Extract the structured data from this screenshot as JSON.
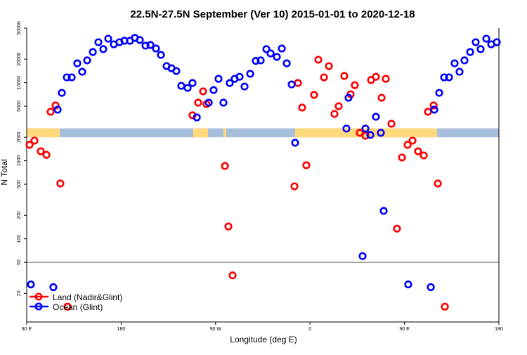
{
  "chart_data": {
    "type": "scatter",
    "title": "22.5N-27.5N September (Ver 10)   2015-01-01 to 2020-12-18",
    "xlabel": "Longitude (deg E)",
    "ylabel": "N Total",
    "xlim": [
      90,
      540
    ],
    "ylim": [
      8.6,
      50000
    ],
    "yscale": "log",
    "x_ticks": [
      {
        "value": 90,
        "label": "90 E"
      },
      {
        "value": 180,
        "label": "180"
      },
      {
        "value": 270,
        "label": "90 W"
      },
      {
        "value": 360,
        "label": "0"
      },
      {
        "value": 450,
        "label": "90 E"
      },
      {
        "value": 540,
        "label": "180"
      }
    ],
    "y_ticks": [
      {
        "value": 50000,
        "label": "50000"
      },
      {
        "value": 20000,
        "label": "20000"
      },
      {
        "value": 10000,
        "label": "10000"
      },
      {
        "value": 5000,
        "label": "5000"
      },
      {
        "value": 2000,
        "label": "2000"
      },
      {
        "value": 1000,
        "label": "1000"
      },
      {
        "value": 500,
        "label": "500"
      },
      {
        "value": 200,
        "label": "200"
      },
      {
        "value": 100,
        "label": "100"
      },
      {
        "value": 50,
        "label": "50"
      },
      {
        "value": 20,
        "label": "20"
      }
    ],
    "reference_line": 50,
    "surface_band": {
      "ylim": [
        2000,
        2600
      ],
      "land_color": "#ffd97a",
      "ocean_color": "#a7bedc",
      "land_segments": [
        [
          90,
          121.5
        ],
        [
          248.7,
          262.8
        ],
        [
          277.5,
          280.2
        ],
        [
          345.8,
          481.0
        ]
      ]
    },
    "legend": {
      "position": "bottom-left"
    },
    "series": [
      {
        "name": "Land (Nadir&Glint)",
        "color": "#ff0000",
        "points": [
          [
            92.7,
            1600
          ],
          [
            97.4,
            1810
          ],
          [
            103.4,
            1320
          ],
          [
            108.8,
            1190
          ],
          [
            112.8,
            4240
          ],
          [
            117.5,
            5110
          ],
          [
            122.1,
            511
          ],
          [
            128.8,
            13.5
          ],
          [
            248.0,
            3820
          ],
          [
            253.4,
            5550
          ],
          [
            258.1,
            7730
          ],
          [
            261.4,
            5320
          ],
          [
            278.9,
            857
          ],
          [
            282.2,
            144
          ],
          [
            286.2,
            34
          ],
          [
            345.2,
            470
          ],
          [
            348.5,
            9900
          ],
          [
            352.5,
            4800
          ],
          [
            356.5,
            875
          ],
          [
            363.9,
            6970
          ],
          [
            367.9,
            19700
          ],
          [
            373.3,
            11700
          ],
          [
            378.0,
            16300
          ],
          [
            383.3,
            3980
          ],
          [
            387.3,
            5000
          ],
          [
            392.7,
            12200
          ],
          [
            398.7,
            7110
          ],
          [
            402.7,
            9300
          ],
          [
            407.4,
            2280
          ],
          [
            412.8,
            2090
          ],
          [
            418.2,
            10800
          ],
          [
            422.8,
            11900
          ],
          [
            428.2,
            6410
          ],
          [
            432.2,
            11200
          ],
          [
            437.6,
            2980
          ],
          [
            442.9,
            135
          ],
          [
            447.6,
            1100
          ],
          [
            453.0,
            1600
          ],
          [
            457.7,
            1810
          ],
          [
            463.0,
            1320
          ],
          [
            468.4,
            1170
          ],
          [
            472.4,
            4240
          ],
          [
            477.8,
            5110
          ],
          [
            481.8,
            511
          ],
          [
            488.5,
            13.5
          ]
        ]
      },
      {
        "name": "Ocean (Glint)",
        "color": "#0000ff",
        "points": [
          [
            94.0,
            26
          ],
          [
            115.4,
            24
          ],
          [
            119.5,
            4510
          ],
          [
            123.5,
            7410
          ],
          [
            128.2,
            11700
          ],
          [
            132.9,
            11700
          ],
          [
            138.2,
            17700
          ],
          [
            142.9,
            13800
          ],
          [
            147.6,
            19300
          ],
          [
            153.0,
            24700
          ],
          [
            158.3,
            33000
          ],
          [
            163.0,
            26900
          ],
          [
            167.7,
            36600
          ],
          [
            173.0,
            31000
          ],
          [
            178.4,
            33000
          ],
          [
            183.1,
            34400
          ],
          [
            188.4,
            34400
          ],
          [
            193.1,
            37500
          ],
          [
            197.8,
            35200
          ],
          [
            203.2,
            29800
          ],
          [
            207.9,
            30400
          ],
          [
            213.2,
            27400
          ],
          [
            217.9,
            22700
          ],
          [
            223.3,
            16300
          ],
          [
            228.0,
            15300
          ],
          [
            232.6,
            14100
          ],
          [
            237.3,
            9100
          ],
          [
            243.4,
            8570
          ],
          [
            248.0,
            9900
          ],
          [
            252.1,
            3590
          ],
          [
            263.5,
            5550
          ],
          [
            268.1,
            8050
          ],
          [
            272.8,
            11200
          ],
          [
            277.5,
            5550
          ],
          [
            283.5,
            9900
          ],
          [
            288.2,
            11200
          ],
          [
            292.9,
            11900
          ],
          [
            297.6,
            8930
          ],
          [
            303.0,
            13000
          ],
          [
            308.3,
            19000
          ],
          [
            313.0,
            19300
          ],
          [
            318.4,
            26900
          ],
          [
            322.4,
            23700
          ],
          [
            328.4,
            21400
          ],
          [
            333.1,
            27400
          ],
          [
            337.8,
            17700
          ],
          [
            342.5,
            9500
          ],
          [
            345.8,
            1700
          ],
          [
            394.7,
            2580
          ],
          [
            396.7,
            6410
          ],
          [
            410.1,
            60
          ],
          [
            412.8,
            2580
          ],
          [
            417.5,
            2140
          ],
          [
            422.8,
            3660
          ],
          [
            427.5,
            2280
          ],
          [
            430.2,
            228
          ],
          [
            453.6,
            26
          ],
          [
            475.1,
            24
          ],
          [
            478.4,
            4510
          ],
          [
            483.1,
            7410
          ],
          [
            487.8,
            11700
          ],
          [
            492.5,
            11700
          ],
          [
            497.8,
            17700
          ],
          [
            502.5,
            13800
          ],
          [
            507.2,
            19300
          ],
          [
            512.6,
            24700
          ],
          [
            517.9,
            33000
          ],
          [
            522.6,
            26900
          ],
          [
            528.0,
            36600
          ],
          [
            532.7,
            31000
          ],
          [
            538.0,
            33000
          ]
        ]
      }
    ]
  }
}
